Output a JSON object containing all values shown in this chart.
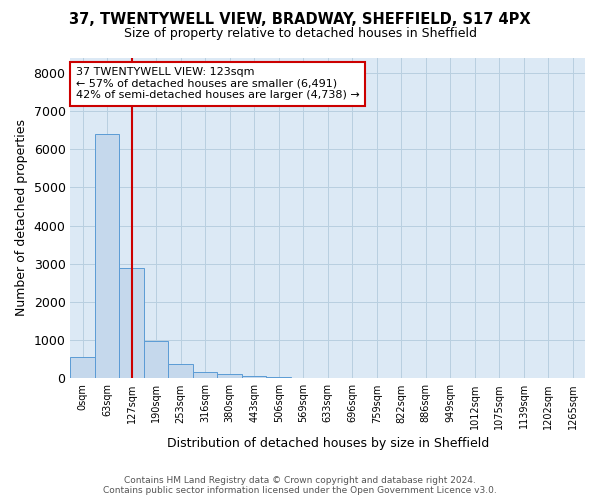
{
  "title": "37, TWENTYWELL VIEW, BRADWAY, SHEFFIELD, S17 4PX",
  "subtitle": "Size of property relative to detached houses in Sheffield",
  "xlabel": "Distribution of detached houses by size in Sheffield",
  "ylabel": "Number of detached properties",
  "footer_line1": "Contains HM Land Registry data © Crown copyright and database right 2024.",
  "footer_line2": "Contains public sector information licensed under the Open Government Licence v3.0.",
  "bin_labels": [
    "0sqm",
    "63sqm",
    "127sqm",
    "190sqm",
    "253sqm",
    "316sqm",
    "380sqm",
    "443sqm",
    "506sqm",
    "569sqm",
    "633sqm",
    "696sqm",
    "759sqm",
    "822sqm",
    "886sqm",
    "949sqm",
    "1012sqm",
    "1075sqm",
    "1139sqm",
    "1202sqm",
    "1265sqm"
  ],
  "bar_values": [
    550,
    6400,
    2900,
    980,
    370,
    160,
    105,
    65,
    35,
    10,
    5,
    3,
    2,
    1,
    1,
    0,
    0,
    0,
    0,
    0,
    0
  ],
  "bar_color": "#c5d8ec",
  "bar_edge_color": "#5b9bd5",
  "ax_bg_color": "#dce9f5",
  "ylim": [
    0,
    8400
  ],
  "yticks": [
    0,
    1000,
    2000,
    3000,
    4000,
    5000,
    6000,
    7000,
    8000
  ],
  "property_bin_index": 2,
  "property_line_color": "#cc0000",
  "annotation_text_line1": "37 TWENTYWELL VIEW: 123sqm",
  "annotation_text_line2": "← 57% of detached houses are smaller (6,491)",
  "annotation_text_line3": "42% of semi-detached houses are larger (4,738) →",
  "annotation_box_facecolor": "#ffffff",
  "annotation_box_edgecolor": "#cc0000",
  "bg_color": "#ffffff",
  "grid_color": "#b8cfe0"
}
